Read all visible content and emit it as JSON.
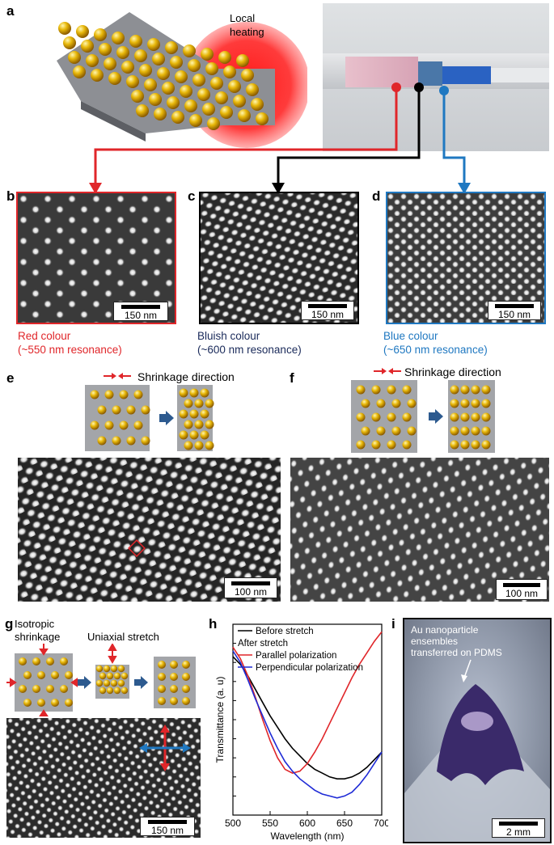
{
  "panels": {
    "a": {
      "label": "a",
      "heating_label_line1": "Local",
      "heating_label_line2": "heating"
    },
    "b": {
      "label": "b",
      "scalebar": "150 nm",
      "caption_line1": "Red colour",
      "caption_line2": "(~550 nm resonance)",
      "color": "#e0262a"
    },
    "c": {
      "label": "c",
      "scalebar": "150 nm",
      "caption_line1": "Bluish colour",
      "caption_line2": "(~600 nm resonance)",
      "color": "#1a2a5a"
    },
    "d": {
      "label": "d",
      "scalebar": "150 nm",
      "caption_line1": "Blue colour",
      "caption_line2": "(~650 nm resonance)",
      "color": "#1f78c1"
    },
    "e": {
      "label": "e",
      "direction_label": "Shrinkage direction",
      "scalebar": "100 nm"
    },
    "f": {
      "label": "f",
      "direction_label": "Shrinkage direction",
      "scalebar": "100 nm"
    },
    "g": {
      "label": "g",
      "isotropic_line1": "Isotropic",
      "isotropic_line2": "shrinkage",
      "uniaxial_label": "Uniaxial stretch",
      "scalebar": "150 nm"
    },
    "h": {
      "label": "h"
    },
    "i": {
      "label": "i",
      "annotation_line1": "Au nanoparticle",
      "annotation_line2": "ensembles",
      "annotation_line3": "transferred on PDMS",
      "scalebar": "2 mm"
    }
  },
  "chart_data": {
    "type": "line",
    "xlabel": "Wavelength (nm)",
    "ylabel": "Transmittance (a. u)",
    "xlim": [
      500,
      700
    ],
    "xticks": [
      500,
      550,
      600,
      650,
      700
    ],
    "legend_position": "top-left",
    "legend_header_line1": "Before stretch",
    "legend_header_line2": "After stretch",
    "series": [
      {
        "name": "Before stretch",
        "color": "#000000",
        "x": [
          500,
          510,
          520,
          530,
          540,
          550,
          560,
          570,
          580,
          590,
          600,
          610,
          620,
          630,
          640,
          650,
          660,
          670,
          680,
          690,
          700
        ],
        "y": [
          0.83,
          0.79,
          0.73,
          0.66,
          0.59,
          0.52,
          0.46,
          0.4,
          0.35,
          0.31,
          0.27,
          0.24,
          0.22,
          0.2,
          0.19,
          0.19,
          0.2,
          0.22,
          0.25,
          0.29,
          0.33
        ]
      },
      {
        "name": "Parallel polarization",
        "color": "#e0262a",
        "x": [
          500,
          510,
          520,
          530,
          540,
          550,
          560,
          570,
          580,
          590,
          600,
          610,
          620,
          630,
          640,
          650,
          660,
          670,
          680,
          690,
          700
        ],
        "y": [
          0.88,
          0.82,
          0.73,
          0.62,
          0.5,
          0.39,
          0.3,
          0.24,
          0.22,
          0.23,
          0.27,
          0.33,
          0.4,
          0.48,
          0.56,
          0.64,
          0.72,
          0.79,
          0.85,
          0.91,
          0.96
        ]
      },
      {
        "name": "Perpendicular polarization",
        "color": "#1f2bd6",
        "x": [
          500,
          510,
          520,
          530,
          540,
          550,
          560,
          570,
          580,
          590,
          600,
          610,
          620,
          630,
          640,
          650,
          660,
          670,
          680,
          690,
          700
        ],
        "y": [
          0.86,
          0.8,
          0.71,
          0.61,
          0.52,
          0.43,
          0.35,
          0.28,
          0.23,
          0.19,
          0.16,
          0.13,
          0.11,
          0.1,
          0.09,
          0.1,
          0.12,
          0.16,
          0.21,
          0.27,
          0.33
        ]
      }
    ]
  }
}
